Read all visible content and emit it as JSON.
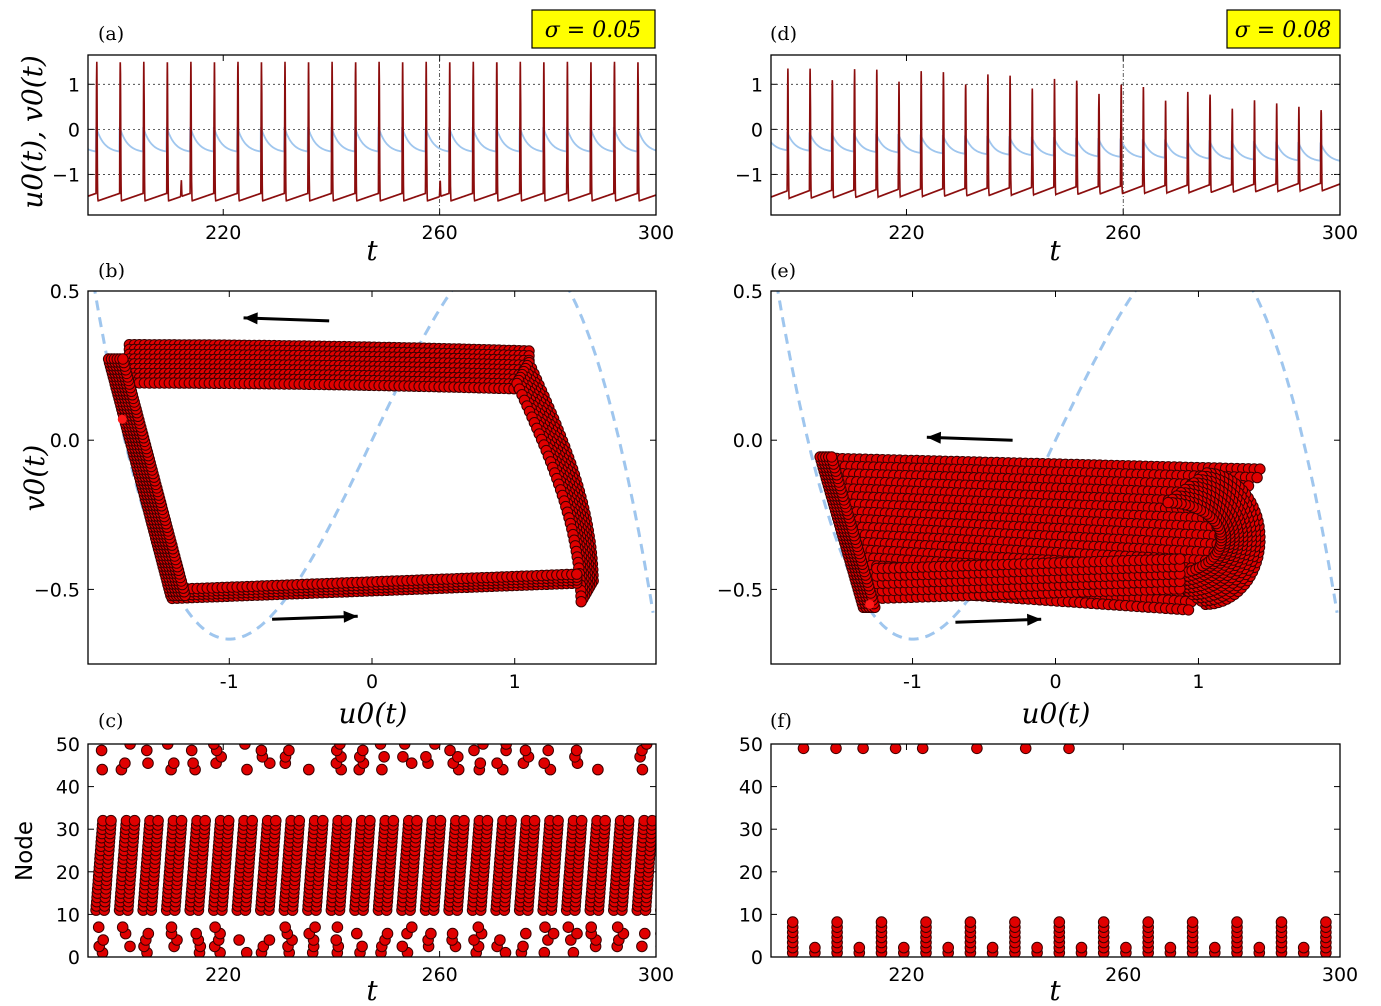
{
  "colors": {
    "u_trace": "#8b0d0d",
    "v_trace": "#9fc6ee",
    "nullcline": "#9fc6ee",
    "marker_fill": "#e00000",
    "marker_edge": "#3a0000",
    "sigma_box": "#ffff00"
  },
  "chart_data": [
    {
      "id": "a",
      "type": "line",
      "panel_label": "(a)",
      "sigma": "σ = 0.05",
      "xlabel": "t",
      "ylabel": "u0(t), v0(t)",
      "xlim": [
        195,
        300
      ],
      "ylim": [
        -1.9,
        1.65
      ],
      "xticks": [
        220,
        260,
        300
      ],
      "yticks": [
        1,
        0,
        -1
      ],
      "grid": "dotted",
      "spike_period": 4.35,
      "spike_start": 196.5,
      "series": [
        {
          "name": "u0(t)",
          "shape": "spikes",
          "peak": 1.5,
          "baseline": -1.6
        },
        {
          "name": "v0(t)",
          "shape": "decay",
          "max": 0.05,
          "min": -0.55
        }
      ]
    },
    {
      "id": "d",
      "type": "line",
      "panel_label": "(d)",
      "sigma": "σ = 0.08",
      "xlabel": "t",
      "ylabel": "",
      "xlim": [
        195,
        300
      ],
      "ylim": [
        -1.9,
        1.65
      ],
      "xticks": [
        220,
        260,
        300
      ],
      "yticks": [
        1,
        0,
        -1
      ],
      "grid": "dotted",
      "spike_period": 4.1,
      "spike_start": 198,
      "series": [
        {
          "name": "u0(t)",
          "shape": "spikes",
          "peak": 1.35,
          "baseline": -1.55
        },
        {
          "name": "v0(t)",
          "shape": "decay",
          "max": -0.05,
          "min": -0.6
        }
      ]
    },
    {
      "id": "b",
      "type": "scatter",
      "panel_label": "(b)",
      "xlabel": "u0(t)",
      "ylabel": "v0(t)",
      "xlim": [
        -1.99,
        1.99
      ],
      "ylim": [
        -0.75,
        0.5
      ],
      "xticks": [
        -1,
        0,
        1
      ],
      "yticks": [
        0.5,
        0.0,
        -0.5
      ],
      "nullcline": "v = u - u^3/3",
      "orbit": {
        "u_left": -1.8,
        "u_right": 1.55,
        "v_top": 0.32,
        "v_bottom": -0.52
      }
    },
    {
      "id": "e",
      "type": "scatter",
      "panel_label": "(e)",
      "xlabel": "u0(t)",
      "ylabel": "",
      "xlim": [
        -1.99,
        1.99
      ],
      "ylim": [
        -0.75,
        0.5
      ],
      "xticks": [
        -1,
        0,
        1
      ],
      "yticks": [
        0.5,
        0.0,
        -0.5
      ],
      "nullcline": "v = u - u^3/3",
      "orbit": {
        "u_left": -1.65,
        "u_right": 1.45,
        "v_top": -0.06,
        "v_bottom": -0.55
      }
    },
    {
      "id": "c",
      "type": "scatter",
      "panel_label": "(c)",
      "xlabel": "t",
      "ylabel": "Node",
      "xlim": [
        195,
        300
      ],
      "ylim": [
        0,
        50
      ],
      "xticks": [
        220,
        260,
        300
      ],
      "yticks": [
        50,
        40,
        30,
        20,
        10,
        0
      ],
      "raster": {
        "period": 4.35,
        "start": 196.5,
        "dense_low": 11,
        "dense_high": 32,
        "top_low": 44,
        "top_high": 50,
        "bottom_low": 1,
        "bottom_high": 7
      }
    },
    {
      "id": "f",
      "type": "scatter",
      "panel_label": "(f)",
      "xlabel": "t",
      "ylabel": "",
      "xlim": [
        195,
        300
      ],
      "ylim": [
        0,
        50
      ],
      "xticks": [
        220,
        260,
        300
      ],
      "yticks": [
        50,
        40,
        30,
        20,
        10,
        0
      ],
      "raster": {
        "top_times": [
          201,
          207,
          212,
          218,
          223,
          233,
          242,
          250
        ],
        "top_node": 49,
        "bottom_period": 4.1,
        "bottom_start": 199
      }
    }
  ]
}
